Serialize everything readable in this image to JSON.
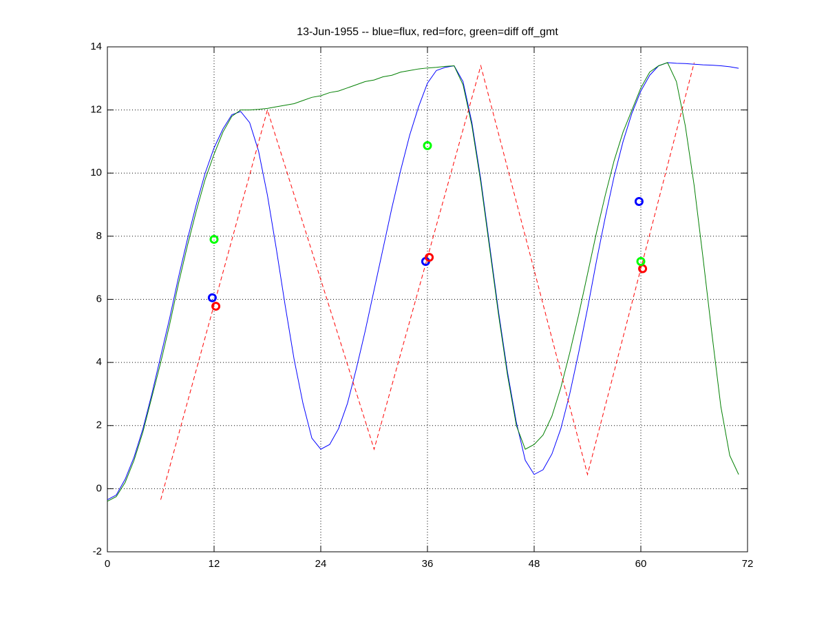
{
  "chart_data": {
    "type": "line",
    "title": "13-Jun-1955 -- blue=flux, red=forc, green=diff off_gmt",
    "xlim": [
      0,
      72
    ],
    "xticks": [
      0,
      12,
      24,
      36,
      48,
      60,
      72
    ],
    "ylim": [
      -2,
      14
    ],
    "yticks": [
      -2,
      0,
      2,
      4,
      6,
      8,
      10,
      12,
      14
    ],
    "grid": true,
    "series": [
      {
        "color": "#0000ff",
        "style": "solid",
        "x": [
          0,
          1,
          2,
          3,
          4,
          5,
          6,
          7,
          8,
          9,
          10,
          11,
          12,
          13,
          14,
          15,
          16,
          17,
          18,
          19,
          20,
          21,
          22,
          23,
          24,
          25,
          26,
          27,
          28,
          29,
          30,
          31,
          32,
          33,
          34,
          35,
          36,
          37,
          38,
          39,
          40,
          41,
          42,
          43,
          44,
          45,
          46,
          47,
          48,
          49,
          50,
          51,
          52,
          53,
          54,
          55,
          56,
          57,
          58,
          59,
          60,
          61,
          62,
          63,
          64,
          65,
          66,
          67,
          68,
          69,
          70,
          71
        ],
        "values": [
          -0.35,
          -0.2,
          0.3,
          1.0,
          1.9,
          3.0,
          4.2,
          5.4,
          6.7,
          7.9,
          9.0,
          10.0,
          10.8,
          11.4,
          11.85,
          11.95,
          11.6,
          10.7,
          9.3,
          7.6,
          5.8,
          4.1,
          2.7,
          1.6,
          1.25,
          1.4,
          1.9,
          2.7,
          3.8,
          5.0,
          6.3,
          7.6,
          8.9,
          10.1,
          11.2,
          12.1,
          12.85,
          13.25,
          13.35,
          13.4,
          12.9,
          11.6,
          9.8,
          7.7,
          5.6,
          3.7,
          2.1,
          0.9,
          0.45,
          0.6,
          1.1,
          1.9,
          3.0,
          4.3,
          5.7,
          7.2,
          8.6,
          9.9,
          11.0,
          11.9,
          12.6,
          13.1,
          13.4,
          13.5,
          13.48,
          13.47,
          13.45,
          13.43,
          13.42,
          13.4,
          13.37,
          13.32
        ]
      },
      {
        "color": "#007f00",
        "style": "solid",
        "x": [
          0,
          1,
          2,
          3,
          4,
          5,
          6,
          7,
          8,
          9,
          10,
          11,
          12,
          13,
          14,
          15,
          16,
          17,
          18,
          19,
          20,
          21,
          22,
          23,
          24,
          25,
          26,
          27,
          28,
          29,
          30,
          31,
          32,
          33,
          34,
          35,
          36,
          37,
          38,
          39,
          40,
          41,
          42,
          43,
          44,
          45,
          46,
          47,
          48,
          49,
          50,
          51,
          52,
          53,
          54,
          55,
          56,
          57,
          58,
          59,
          60,
          61,
          62,
          63,
          64,
          65,
          66,
          67,
          68,
          69,
          70,
          71
        ],
        "values": [
          -0.4,
          -0.25,
          0.2,
          0.9,
          1.8,
          2.9,
          4.0,
          5.2,
          6.5,
          7.7,
          8.8,
          9.8,
          10.6,
          11.3,
          11.8,
          12.0,
          12.0,
          12.02,
          12.05,
          12.1,
          12.15,
          12.2,
          12.3,
          12.4,
          12.45,
          12.55,
          12.6,
          12.7,
          12.8,
          12.9,
          12.95,
          13.05,
          13.1,
          13.2,
          13.25,
          13.3,
          13.33,
          13.35,
          13.38,
          13.4,
          12.8,
          11.5,
          9.7,
          7.6,
          5.5,
          3.6,
          2.0,
          1.25,
          1.4,
          1.7,
          2.3,
          3.2,
          4.3,
          5.5,
          6.8,
          8.1,
          9.3,
          10.4,
          11.3,
          12.0,
          12.7,
          13.2,
          13.4,
          13.5,
          12.9,
          11.5,
          9.6,
          7.3,
          4.9,
          2.6,
          1.05,
          0.45
        ]
      },
      {
        "color": "#ff0000",
        "style": "dashed",
        "x": [
          6,
          18,
          30,
          42,
          54,
          66
        ],
        "values": [
          -0.35,
          12.0,
          1.25,
          13.4,
          0.45,
          13.5
        ]
      },
      {
        "color": "#0000ff",
        "style": "marker",
        "x": [
          11.8,
          35.8,
          59.8
        ],
        "values": [
          6.05,
          7.2,
          9.1
        ]
      },
      {
        "color": "#ff0000",
        "style": "marker",
        "x": [
          12.2,
          36.2,
          60.2
        ],
        "values": [
          5.78,
          7.33,
          6.97
        ]
      },
      {
        "color": "#00ff00",
        "style": "marker",
        "x": [
          12,
          36,
          60
        ],
        "values": [
          7.9,
          10.87,
          7.2
        ]
      }
    ]
  }
}
